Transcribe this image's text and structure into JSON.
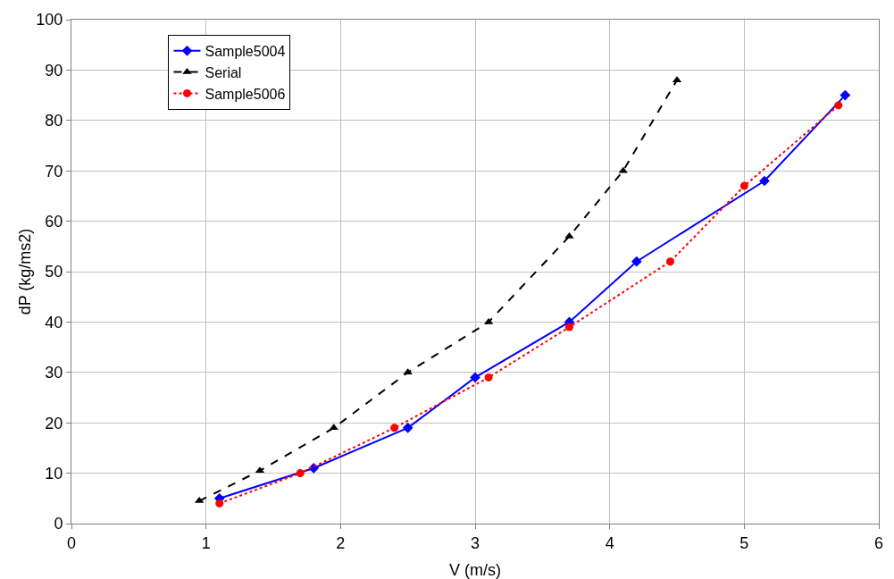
{
  "chart_data": {
    "type": "line",
    "xlabel": "V (m/s)",
    "ylabel": "dP (kg/ms2)",
    "xlim": [
      0,
      6
    ],
    "xticks": [
      0,
      1,
      2,
      3,
      4,
      5,
      6
    ],
    "ylim": [
      0,
      100
    ],
    "yticks": [
      0,
      10,
      20,
      30,
      40,
      50,
      60,
      70,
      80,
      90,
      100
    ],
    "grid": true,
    "legend": "top left",
    "series": [
      {
        "name": "Sample5004",
        "color": "#0000ff",
        "marker": "diamond",
        "line_style": "solid",
        "x": [
          1.1,
          1.8,
          2.5,
          3.0,
          3.7,
          4.2,
          5.15,
          5.75
        ],
        "values": [
          5,
          11,
          19,
          29,
          40,
          52,
          68,
          85
        ]
      },
      {
        "name": "Serial",
        "color": "#000000",
        "marker": "triangle",
        "line_style": "dashed",
        "x": [
          0.95,
          1.4,
          1.95,
          2.5,
          3.1,
          3.7,
          4.1,
          4.5
        ],
        "values": [
          4.5,
          10.5,
          19,
          30,
          40,
          57,
          70,
          88
        ]
      },
      {
        "name": "Sample5006",
        "color": "#ff0000",
        "marker": "circle",
        "line_style": "dotted",
        "x": [
          1.1,
          1.7,
          2.4,
          3.1,
          3.7,
          4.45,
          5.0,
          5.7
        ],
        "values": [
          4,
          10,
          19,
          29,
          39,
          52,
          67,
          83
        ]
      }
    ]
  }
}
